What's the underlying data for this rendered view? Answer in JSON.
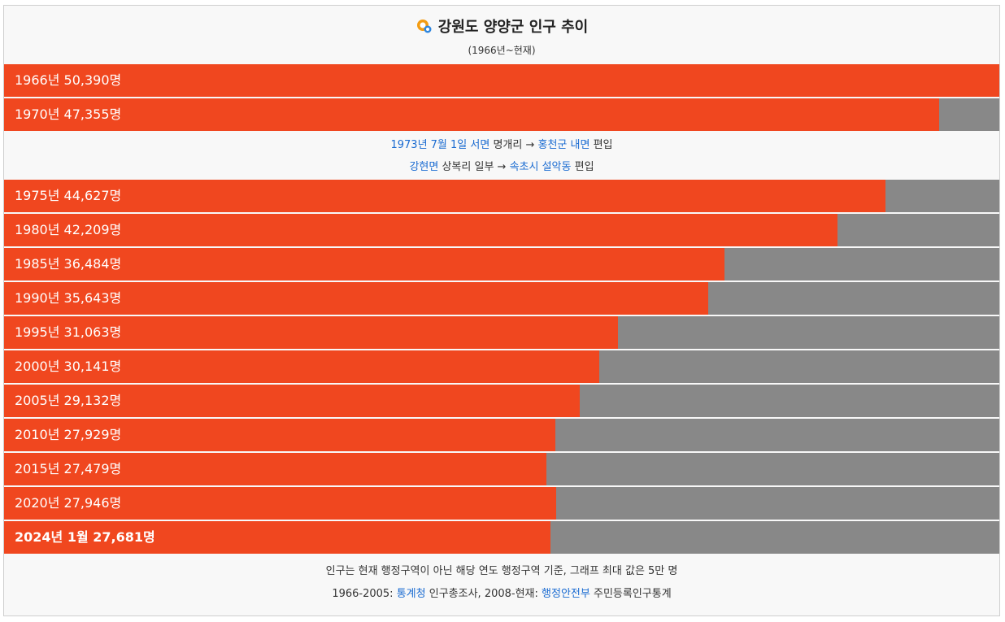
{
  "header": {
    "title": "강원도 양양군 인구 추이",
    "subtitle": "(1966년~현재)"
  },
  "chart_data": {
    "type": "bar",
    "orientation": "horizontal",
    "xlim": [
      0,
      50390
    ],
    "categories": [
      "1966년",
      "1970년",
      "1975년",
      "1980년",
      "1985년",
      "1990년",
      "1995년",
      "2000년",
      "2005년",
      "2010년",
      "2015년",
      "2020년",
      "2024년 1월"
    ],
    "values": [
      50390,
      47355,
      44627,
      42209,
      36484,
      35643,
      31063,
      30141,
      29132,
      27929,
      27479,
      27946,
      27681
    ],
    "labels": [
      "1966년 50,390명",
      "1970년 47,355명",
      "1975년 44,627명",
      "1980년 42,209명",
      "1985년 36,484명",
      "1990년 35,643명",
      "1995년 31,063명",
      "2000년 30,141명",
      "2005년 29,132명",
      "2010년 27,929명",
      "2015년 27,479명",
      "2020년 27,946명",
      "2024년 1월 27,681명"
    ],
    "colors": {
      "bar": "#f0471f",
      "remainder": "#888888"
    }
  },
  "note": {
    "line1": {
      "link_date": "1973년 7월 1일",
      "link_place": "서면",
      "text1": "명개리 →",
      "link_target": "홍천군 내면",
      "text2": "편입"
    },
    "line2": {
      "link_place": "강현면",
      "text1": "상복리 일부 →",
      "link_target": "속초시 설악동",
      "text2": "편입"
    }
  },
  "footer": {
    "line1": "인구는 현재 행정구역이 아닌 해당 연도 행정구역 기준, 그래프 최대 값은 5만 명",
    "line2_prefix": "1966-2005:",
    "line2_link1": "통계청",
    "line2_mid": "인구총조사, 2008-현재:",
    "line2_link2": "행정안전부",
    "line2_suffix": "주민등록인구통계"
  },
  "icons": {
    "logo": "census-logo-icon"
  },
  "colors": {
    "link": "#1a6bd1"
  }
}
